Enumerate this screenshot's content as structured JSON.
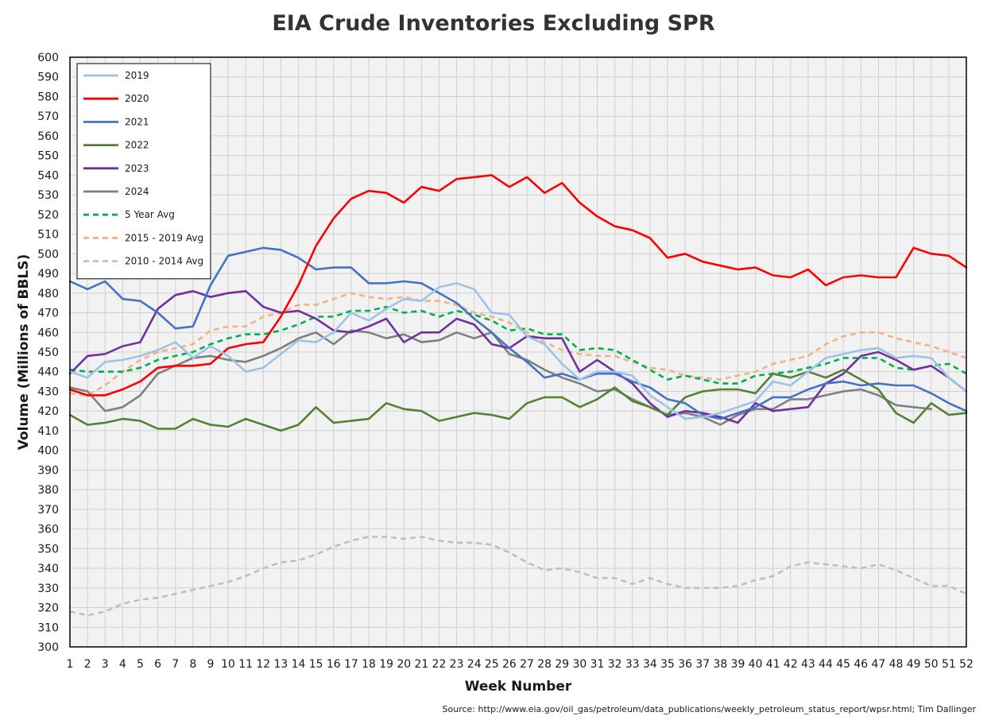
{
  "chart_data": {
    "type": "line",
    "title": "EIA Crude Inventories Excluding SPR",
    "xlabel": "Week Number",
    "ylabel": "Volume (Millions of BBLS)",
    "source": "Source: http://www.eia.gov/oil_gas/petroleum/data_publications/weekly_petroleum_status_report/wpsr.html; Tim Dallinger",
    "xlim": [
      1,
      52
    ],
    "ylim": [
      300,
      600
    ],
    "ystep": 10,
    "x": [
      1,
      2,
      3,
      4,
      5,
      6,
      7,
      8,
      9,
      10,
      11,
      12,
      13,
      14,
      15,
      16,
      17,
      18,
      19,
      20,
      21,
      22,
      23,
      24,
      25,
      26,
      27,
      28,
      29,
      30,
      31,
      32,
      33,
      34,
      35,
      36,
      37,
      38,
      39,
      40,
      41,
      42,
      43,
      44,
      45,
      46,
      47,
      48,
      49,
      50,
      51,
      52
    ],
    "grid": true,
    "legend_position": "top-left",
    "background": "#f2f2f2",
    "series": [
      {
        "name": "2019",
        "color": "#9dc3e6",
        "dash": "solid",
        "values": [
          440,
          437,
          445,
          446,
          448,
          451,
          455,
          447,
          453,
          448,
          440,
          442,
          449,
          456,
          455,
          460,
          470,
          466,
          472,
          477,
          476,
          483,
          485,
          482,
          470,
          469,
          458,
          454,
          444,
          436,
          440,
          440,
          438,
          428,
          422,
          416,
          417,
          419,
          422,
          425,
          435,
          433,
          440,
          447,
          449,
          451,
          452,
          447,
          448,
          447,
          437,
          430
        ]
      },
      {
        "name": "2020",
        "color": "#ff0000",
        "dash": "solid",
        "values": [
          431,
          428,
          428,
          431,
          435,
          442,
          443,
          443,
          444,
          452,
          454,
          455,
          468,
          484,
          504,
          518,
          528,
          532,
          531,
          526,
          534,
          532,
          538,
          539,
          540,
          534,
          539,
          531,
          536,
          526,
          519,
          514,
          512,
          508,
          498,
          500,
          496,
          494,
          492,
          493,
          489,
          488,
          492,
          484,
          488,
          489,
          488,
          488,
          503,
          500,
          499,
          493
        ]
      },
      {
        "name": "2021",
        "color": "#4472c4",
        "dash": "solid",
        "values": [
          486,
          482,
          486,
          477,
          476,
          470,
          462,
          463,
          484,
          499,
          501,
          503,
          502,
          498,
          492,
          493,
          493,
          485,
          485,
          486,
          485,
          480,
          475,
          467,
          460,
          452,
          445,
          437,
          439,
          436,
          439,
          439,
          435,
          432,
          426,
          424,
          418,
          416,
          419,
          422,
          427,
          427,
          431,
          434,
          435,
          433,
          434,
          433,
          433,
          429,
          424,
          420
        ]
      },
      {
        "name": "2022",
        "color": "#548235",
        "dash": "solid",
        "values": [
          418,
          413,
          414,
          416,
          415,
          411,
          411,
          416,
          413,
          412,
          416,
          413,
          410,
          413,
          422,
          414,
          415,
          416,
          424,
          421,
          420,
          415,
          417,
          419,
          418,
          416,
          424,
          427,
          427,
          422,
          426,
          432,
          425,
          422,
          418,
          427,
          430,
          431,
          431,
          429,
          439,
          437,
          440,
          437,
          441,
          436,
          431,
          419,
          414,
          424,
          418,
          419
        ]
      },
      {
        "name": "2023",
        "color": "#7030a0",
        "dash": "solid",
        "values": [
          439,
          448,
          449,
          453,
          455,
          472,
          479,
          481,
          478,
          480,
          481,
          473,
          470,
          471,
          467,
          461,
          460,
          463,
          467,
          455,
          460,
          460,
          467,
          464,
          454,
          452,
          458,
          457,
          457,
          440,
          446,
          440,
          434,
          424,
          417,
          420,
          419,
          417,
          414,
          424,
          420,
          421,
          422,
          434,
          439,
          448,
          450,
          446,
          441,
          443,
          437,
          430
        ]
      },
      {
        "name": "2024",
        "color": "#7f7f7f",
        "dash": "solid",
        "values": [
          432,
          430,
          420,
          422,
          428,
          439,
          443,
          447,
          448,
          446,
          445,
          448,
          452,
          457,
          460,
          454,
          461,
          460,
          457,
          459,
          455,
          456,
          460,
          457,
          460,
          449,
          446,
          441,
          437,
          434,
          430,
          431,
          426,
          422,
          418,
          419,
          417,
          413,
          418,
          421,
          421,
          426,
          426,
          428,
          430,
          431,
          428,
          423,
          422,
          421,
          null,
          null
        ]
      },
      {
        "name": "5 Year Avg",
        "color": "#00b050",
        "dash": "dashed",
        "values": [
          441,
          440,
          440,
          440,
          442,
          446,
          448,
          450,
          454,
          457,
          459,
          459,
          461,
          464,
          468,
          468,
          471,
          471,
          473,
          470,
          471,
          468,
          471,
          469,
          466,
          461,
          462,
          459,
          459,
          451,
          452,
          451,
          446,
          441,
          436,
          438,
          436,
          434,
          434,
          438,
          439,
          440,
          442,
          444,
          447,
          447,
          447,
          442,
          441,
          443,
          444,
          439
        ]
      },
      {
        "name": "2015 - 2019 Avg",
        "color": "#f4b183",
        "dash": "dashed",
        "values": [
          429,
          428,
          433,
          440,
          446,
          450,
          452,
          454,
          461,
          463,
          463,
          468,
          470,
          474,
          474,
          477,
          480,
          478,
          477,
          478,
          476,
          476,
          474,
          470,
          468,
          465,
          460,
          455,
          451,
          449,
          448,
          448,
          445,
          442,
          441,
          438,
          437,
          436,
          438,
          440,
          444,
          446,
          448,
          454,
          458,
          460,
          460,
          457,
          455,
          453,
          450,
          447
        ]
      },
      {
        "name": "2010 - 2014 Avg",
        "color": "#bfbfbf",
        "dash": "dashed",
        "values": [
          318,
          316,
          318,
          322,
          324,
          325,
          327,
          329,
          331,
          333,
          336,
          340,
          343,
          344,
          347,
          351,
          354,
          356,
          356,
          355,
          356,
          354,
          353,
          353,
          352,
          348,
          343,
          339,
          340,
          338,
          335,
          335,
          332,
          335,
          332,
          330,
          330,
          330,
          331,
          334,
          336,
          341,
          343,
          342,
          341,
          340,
          342,
          339,
          335,
          331,
          331,
          327
        ]
      }
    ]
  }
}
